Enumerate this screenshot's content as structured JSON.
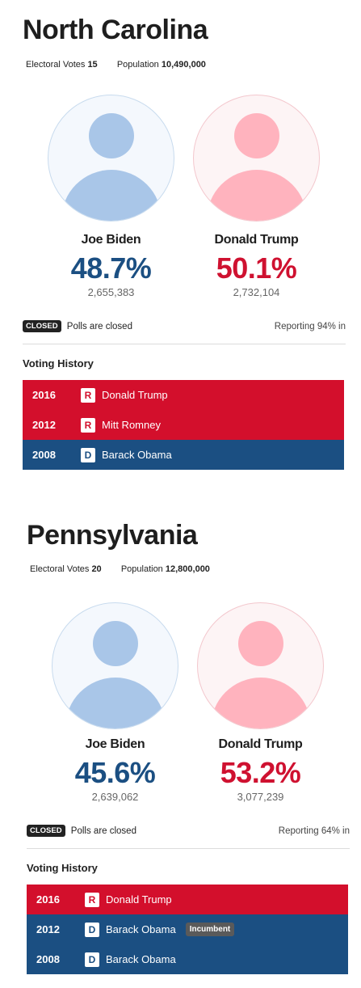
{
  "labels": {
    "electoral_votes": "Electoral Votes",
    "population": "Population",
    "closed_badge": "CLOSED",
    "polls_closed": "Polls are closed",
    "voting_history": "Voting History",
    "incumbent": "Incumbent"
  },
  "states": [
    {
      "name": "North Carolina",
      "electoral_votes": "15",
      "population": "10,490,000",
      "candidates": [
        {
          "name": "Joe Biden",
          "pct": "48.7%",
          "votes": "2,655,383",
          "party": "D"
        },
        {
          "name": "Donald Trump",
          "pct": "50.1%",
          "votes": "2,732,104",
          "party": "R"
        }
      ],
      "reporting": "Reporting 94% in",
      "history": [
        {
          "year": "2016",
          "party": "R",
          "name": "Donald Trump"
        },
        {
          "year": "2012",
          "party": "R",
          "name": "Mitt Romney"
        },
        {
          "year": "2008",
          "party": "D",
          "name": "Barack Obama"
        }
      ]
    },
    {
      "name": "Pennsylvania",
      "electoral_votes": "20",
      "population": "12,800,000",
      "candidates": [
        {
          "name": "Joe Biden",
          "pct": "45.6%",
          "votes": "2,639,062",
          "party": "D"
        },
        {
          "name": "Donald Trump",
          "pct": "53.2%",
          "votes": "3,077,239",
          "party": "R"
        }
      ],
      "reporting": "Reporting 64% in",
      "history": [
        {
          "year": "2016",
          "party": "R",
          "name": "Donald Trump"
        },
        {
          "year": "2012",
          "party": "D",
          "name": "Barack Obama",
          "incumbent": true
        },
        {
          "year": "2008",
          "party": "D",
          "name": "Barack Obama"
        }
      ]
    }
  ],
  "colors": {
    "dem": "#1b4f82",
    "rep": "#d30f2c"
  }
}
